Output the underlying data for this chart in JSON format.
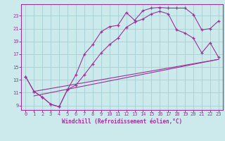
{
  "xlabel": "Windchill (Refroidissement éolien,°C)",
  "bg_color": "#cceaeb",
  "grid_color": "#aad4d8",
  "line_color": "#993399",
  "marker": "+",
  "xlim": [
    -0.5,
    23.5
  ],
  "ylim": [
    8.3,
    24.8
  ],
  "yticks": [
    9,
    11,
    13,
    15,
    17,
    19,
    21,
    23
  ],
  "xticks": [
    0,
    1,
    2,
    3,
    4,
    5,
    6,
    7,
    8,
    9,
    10,
    11,
    12,
    13,
    14,
    15,
    16,
    17,
    18,
    19,
    20,
    21,
    22,
    23
  ],
  "series1_x": [
    0,
    1,
    2,
    3,
    4,
    5,
    6,
    7,
    8,
    9,
    10,
    11,
    12,
    13,
    14,
    15,
    16,
    17,
    18,
    19,
    20,
    21,
    22,
    23
  ],
  "series1_y": [
    13.5,
    11.2,
    10.3,
    9.2,
    8.8,
    11.5,
    13.8,
    17.0,
    18.5,
    20.5,
    21.3,
    21.5,
    23.5,
    22.3,
    23.8,
    24.2,
    24.3,
    24.2,
    24.2,
    24.2,
    23.2,
    20.8,
    21.0,
    22.2
  ],
  "series2_x": [
    0,
    1,
    2,
    3,
    4,
    5,
    6,
    7,
    8,
    9,
    10,
    11,
    12,
    13,
    14,
    15,
    16,
    17,
    18,
    19,
    20,
    21,
    22,
    23
  ],
  "series2_y": [
    13.5,
    11.2,
    10.3,
    9.2,
    8.8,
    11.5,
    12.2,
    13.8,
    15.5,
    17.2,
    18.5,
    19.5,
    21.2,
    22.0,
    22.5,
    23.3,
    23.7,
    23.3,
    20.8,
    20.3,
    19.5,
    17.2,
    18.8,
    16.5
  ],
  "series3_x": [
    1,
    23
  ],
  "series3_y": [
    10.5,
    16.2
  ],
  "series4_x": [
    1,
    23
  ],
  "series4_y": [
    11.2,
    16.2
  ]
}
